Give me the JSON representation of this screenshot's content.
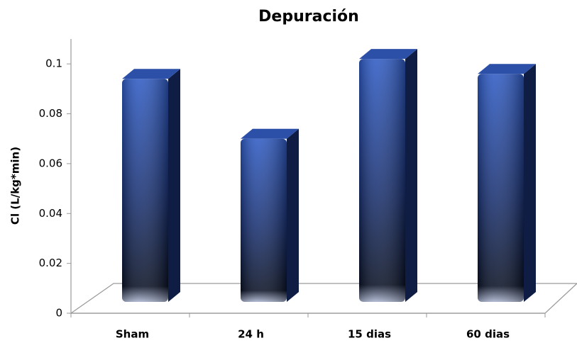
{
  "chart_data": {
    "type": "bar3d",
    "title": "Depuración",
    "y_label": "Cl (L/kg*min)",
    "categories": [
      "Sham",
      "24 h",
      "15 dias",
      "60 dias"
    ],
    "values": [
      0.094,
      0.07,
      0.102,
      0.096
    ],
    "color": "#2a4fae",
    "ylim": [
      0,
      0.11
    ],
    "yticks": [
      0,
      0.02,
      0.04,
      0.06,
      0.08,
      0.1
    ]
  }
}
